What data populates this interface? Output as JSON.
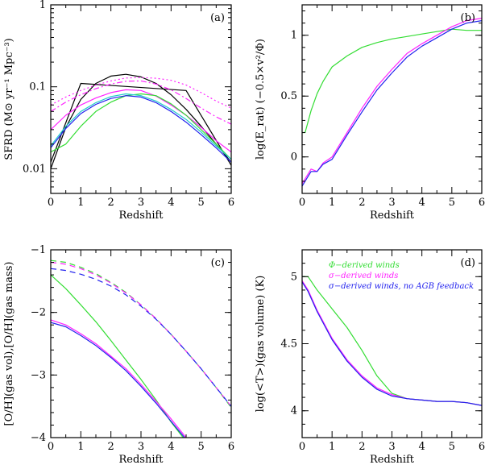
{
  "colors": {
    "green": "#33dd33",
    "magenta": "#ff22ff",
    "blue": "#2222ee",
    "cyan": "#22cccc",
    "black": "#000000"
  },
  "legend": {
    "items": [
      {
        "text": "Φ−derived winds",
        "color": "#33dd33"
      },
      {
        "text": "σ−derived winds",
        "color": "#ff22ff"
      },
      {
        "text": "σ−derived winds, no AGB feedback",
        "color": "#2222ee"
      }
    ]
  },
  "chart_data": [
    {
      "id": "a",
      "type": "line",
      "panel_label": "(a)",
      "xlabel": "Redshift",
      "ylabel": "SFRD (M⊙ yr⁻¹ Mpc⁻³)",
      "xlim": [
        0,
        6
      ],
      "ylim": [
        0.005,
        1
      ],
      "yscale": "log",
      "xticks": [
        "0",
        "1",
        "2",
        "3",
        "4",
        "5",
        "6"
      ],
      "yticks": [
        {
          "v": 0.01,
          "t": "0.01"
        },
        {
          "v": 0.1,
          "t": "0.1"
        },
        {
          "v": 1,
          "t": "1"
        }
      ],
      "series": [
        {
          "color": "black",
          "style": "solid",
          "x": [
            0,
            1,
            4.5,
            6
          ],
          "y": [
            0.012,
            0.11,
            0.09,
            0.011
          ]
        },
        {
          "color": "black",
          "style": "solid",
          "x": [
            0,
            0.5,
            1,
            1.5,
            2,
            2.5,
            3,
            3.5,
            4,
            4.5,
            5,
            5.5,
            6
          ],
          "y": [
            0.01,
            0.032,
            0.07,
            0.11,
            0.135,
            0.142,
            0.132,
            0.11,
            0.08,
            0.053,
            0.033,
            0.02,
            0.012
          ]
        },
        {
          "color": "magenta",
          "style": "dotted",
          "x": [
            0,
            0.5,
            1,
            1.5,
            2,
            2.5,
            3,
            3.5,
            4,
            4.5,
            5,
            5.5,
            6
          ],
          "y": [
            0.06,
            0.075,
            0.09,
            0.105,
            0.118,
            0.128,
            0.13,
            0.127,
            0.12,
            0.105,
            0.085,
            0.067,
            0.055
          ]
        },
        {
          "color": "magenta",
          "style": "dashdot",
          "x": [
            0,
            0.5,
            1,
            1.5,
            2,
            2.5,
            3,
            3.5,
            4,
            4.5,
            5,
            5.5,
            6
          ],
          "y": [
            0.05,
            0.065,
            0.08,
            0.095,
            0.108,
            0.117,
            0.118,
            0.108,
            0.092,
            0.072,
            0.055,
            0.043,
            0.035
          ]
        },
        {
          "color": "magenta",
          "style": "solid",
          "x": [
            0,
            0.5,
            1,
            1.5,
            2,
            2.5,
            3,
            3.5,
            4,
            4.5,
            5,
            5.5,
            6
          ],
          "y": [
            0.03,
            0.045,
            0.06,
            0.073,
            0.085,
            0.092,
            0.09,
            0.077,
            0.06,
            0.045,
            0.032,
            0.022,
            0.016
          ]
        },
        {
          "color": "green",
          "style": "solid",
          "x": [
            0,
            0.5,
            1,
            1.5,
            2,
            2.5,
            3,
            3.5,
            4,
            4.5,
            5,
            5.5,
            6
          ],
          "y": [
            0.016,
            0.02,
            0.033,
            0.05,
            0.065,
            0.078,
            0.082,
            0.078,
            0.062,
            0.045,
            0.03,
            0.02,
            0.013
          ]
        },
        {
          "color": "cyan",
          "style": "solid",
          "x": [
            0,
            0.5,
            1,
            1.5,
            2,
            2.5,
            3,
            3.5,
            4,
            4.5,
            5,
            5.5,
            6
          ],
          "y": [
            0.019,
            0.033,
            0.05,
            0.064,
            0.076,
            0.082,
            0.078,
            0.067,
            0.053,
            0.04,
            0.028,
            0.019,
            0.013
          ]
        },
        {
          "color": "blue",
          "style": "solid",
          "x": [
            0,
            0.5,
            1,
            1.5,
            2,
            2.5,
            3,
            3.5,
            4,
            4.5,
            5,
            5.5,
            6
          ],
          "y": [
            0.018,
            0.031,
            0.047,
            0.061,
            0.072,
            0.078,
            0.075,
            0.064,
            0.05,
            0.037,
            0.026,
            0.018,
            0.012
          ]
        }
      ]
    },
    {
      "id": "b",
      "type": "line",
      "panel_label": "(b)",
      "xlabel": "Redshift",
      "ylabel": "log(E_rat)  (−0.5×v²/Φ)",
      "xlim": [
        0,
        6
      ],
      "ylim": [
        -0.3,
        1.25
      ],
      "xticks": [
        "0",
        "1",
        "2",
        "3",
        "4",
        "5",
        "6"
      ],
      "yticks": [
        {
          "v": 0,
          "t": "0"
        },
        {
          "v": 0.5,
          "t": "0.5"
        },
        {
          "v": 1,
          "t": "1"
        }
      ],
      "series": [
        {
          "color": "green",
          "style": "solid",
          "x": [
            0,
            0.1,
            0.3,
            0.5,
            0.7,
            1,
            1.5,
            2,
            2.5,
            3,
            3.5,
            4,
            4.5,
            5,
            5.5,
            6
          ],
          "y": [
            0.2,
            0.2,
            0.38,
            0.52,
            0.62,
            0.74,
            0.83,
            0.9,
            0.94,
            0.97,
            0.99,
            1.01,
            1.03,
            1.05,
            1.04,
            1.04
          ]
        },
        {
          "color": "magenta",
          "style": "solid",
          "x": [
            0,
            0.1,
            0.3,
            0.5,
            0.7,
            1,
            1.5,
            2,
            2.5,
            3,
            3.5,
            4,
            4.5,
            5,
            5.5,
            6
          ],
          "y": [
            -0.22,
            -0.18,
            -0.1,
            -0.12,
            -0.05,
            0.0,
            0.2,
            0.4,
            0.58,
            0.72,
            0.85,
            0.93,
            1.0,
            1.07,
            1.12,
            1.14
          ]
        },
        {
          "color": "blue",
          "style": "solid",
          "x": [
            0,
            0.1,
            0.3,
            0.5,
            0.7,
            1,
            1.5,
            2,
            2.5,
            3,
            3.5,
            4,
            4.5,
            5,
            5.5,
            6
          ],
          "y": [
            -0.24,
            -0.2,
            -0.12,
            -0.12,
            -0.06,
            -0.02,
            0.18,
            0.37,
            0.55,
            0.69,
            0.82,
            0.91,
            0.98,
            1.05,
            1.1,
            1.12
          ]
        }
      ]
    },
    {
      "id": "c",
      "type": "line",
      "panel_label": "(c)",
      "xlabel": "Redshift",
      "ylabel": "[O/H](gas vol),[O/H](gas mass)",
      "xlim": [
        0,
        6
      ],
      "ylim": [
        -4,
        -1
      ],
      "xticks": [
        "0",
        "1",
        "2",
        "3",
        "4",
        "5",
        "6"
      ],
      "yticks": [
        {
          "v": -4,
          "t": "−4"
        },
        {
          "v": -3,
          "t": "−3"
        },
        {
          "v": -2,
          "t": "−2"
        },
        {
          "v": -1,
          "t": "−1"
        }
      ],
      "series": [
        {
          "color": "green",
          "style": "dashed",
          "x": [
            0,
            0.5,
            1,
            1.5,
            2,
            2.5,
            3,
            3.5,
            4,
            4.5,
            5,
            5.5,
            6
          ],
          "y": [
            -1.17,
            -1.2,
            -1.28,
            -1.38,
            -1.52,
            -1.68,
            -1.88,
            -2.1,
            -2.35,
            -2.62,
            -2.9,
            -3.2,
            -3.52
          ]
        },
        {
          "color": "magenta",
          "style": "dashed",
          "x": [
            0,
            0.5,
            1,
            1.5,
            2,
            2.5,
            3,
            3.5,
            4,
            4.5,
            5,
            5.5,
            6
          ],
          "y": [
            -1.2,
            -1.23,
            -1.3,
            -1.4,
            -1.53,
            -1.69,
            -1.88,
            -2.1,
            -2.35,
            -2.62,
            -2.9,
            -3.2,
            -3.5
          ]
        },
        {
          "color": "blue",
          "style": "dashed",
          "x": [
            0,
            0.5,
            1,
            1.5,
            2,
            2.5,
            3,
            3.5,
            4,
            4.5,
            5,
            5.5,
            6
          ],
          "y": [
            -1.3,
            -1.33,
            -1.39,
            -1.47,
            -1.58,
            -1.72,
            -1.9,
            -2.11,
            -2.35,
            -2.62,
            -2.9,
            -3.2,
            -3.5
          ]
        },
        {
          "color": "green",
          "style": "solid",
          "x": [
            0,
            0.5,
            1,
            1.5,
            2,
            2.5,
            3,
            3.5,
            4,
            4.4
          ],
          "y": [
            -1.4,
            -1.62,
            -1.88,
            -2.15,
            -2.45,
            -2.76,
            -3.07,
            -3.4,
            -3.75,
            -4.0
          ]
        },
        {
          "color": "magenta",
          "style": "solid",
          "x": [
            0,
            0.5,
            1,
            1.5,
            2,
            2.5,
            3,
            3.5,
            4,
            4.5
          ],
          "y": [
            -2.12,
            -2.2,
            -2.34,
            -2.5,
            -2.7,
            -2.9,
            -3.15,
            -3.42,
            -3.7,
            -4.0
          ]
        },
        {
          "color": "blue",
          "style": "solid",
          "x": [
            0,
            0.5,
            1,
            1.5,
            2,
            2.5,
            3,
            3.5,
            4,
            4.45
          ],
          "y": [
            -2.16,
            -2.23,
            -2.37,
            -2.53,
            -2.72,
            -2.93,
            -3.18,
            -3.45,
            -3.74,
            -4.0
          ]
        }
      ]
    },
    {
      "id": "d",
      "type": "line",
      "panel_label": "(d)",
      "xlabel": "Redshift",
      "ylabel": "log(<T>)(gas volume)  (K)",
      "xlim": [
        0,
        6
      ],
      "ylim": [
        3.8,
        5.2
      ],
      "xticks": [
        "0",
        "1",
        "2",
        "3",
        "4",
        "5",
        "6"
      ],
      "yticks": [
        {
          "v": 4,
          "t": "4"
        },
        {
          "v": 4.5,
          "t": "4.5"
        },
        {
          "v": 5,
          "t": "5"
        }
      ],
      "legend": "top-right",
      "series": [
        {
          "color": "green",
          "style": "solid",
          "x": [
            0,
            0.2,
            0.5,
            1,
            1.5,
            2,
            2.5,
            3,
            3.5,
            4,
            4.5,
            5,
            5.5,
            6
          ],
          "y": [
            5.0,
            5.0,
            4.9,
            4.76,
            4.62,
            4.45,
            4.26,
            4.13,
            4.09,
            4.08,
            4.07,
            4.07,
            4.06,
            4.04
          ]
        },
        {
          "color": "magenta",
          "style": "solid",
          "x": [
            0,
            0.2,
            0.5,
            1,
            1.5,
            2,
            2.5,
            3,
            3.5,
            4,
            4.5,
            5,
            5.5,
            6
          ],
          "y": [
            4.97,
            4.9,
            4.75,
            4.54,
            4.38,
            4.26,
            4.17,
            4.12,
            4.09,
            4.08,
            4.07,
            4.07,
            4.06,
            4.04
          ]
        },
        {
          "color": "blue",
          "style": "solid",
          "x": [
            0,
            0.2,
            0.5,
            1,
            1.5,
            2,
            2.5,
            3,
            3.5,
            4,
            4.5,
            5,
            5.5,
            6
          ],
          "y": [
            4.96,
            4.89,
            4.74,
            4.53,
            4.37,
            4.25,
            4.16,
            4.11,
            4.09,
            4.08,
            4.07,
            4.07,
            4.06,
            4.04
          ]
        }
      ]
    }
  ]
}
